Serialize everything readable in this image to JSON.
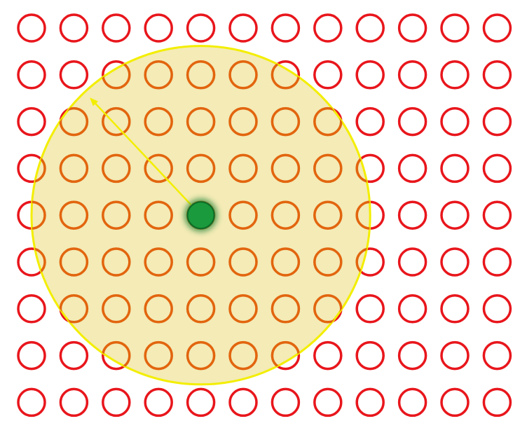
{
  "grid": {
    "rows": 9,
    "columns": 12,
    "node_color": "#e8161c",
    "node_fill": "#ffffff"
  },
  "center_node": {
    "row": 4,
    "column": 4,
    "color": "#1a9a3c",
    "glow_color": "#2f8a3f"
  },
  "neighborhood": {
    "radius_in_spacings": 4.0,
    "fill_color": "#f2e6a6",
    "stroke_color": "#f3ee00"
  },
  "radius_arrow": {
    "color": "#f3ee00",
    "points_to_row": 1,
    "points_to_column": 1.4
  }
}
